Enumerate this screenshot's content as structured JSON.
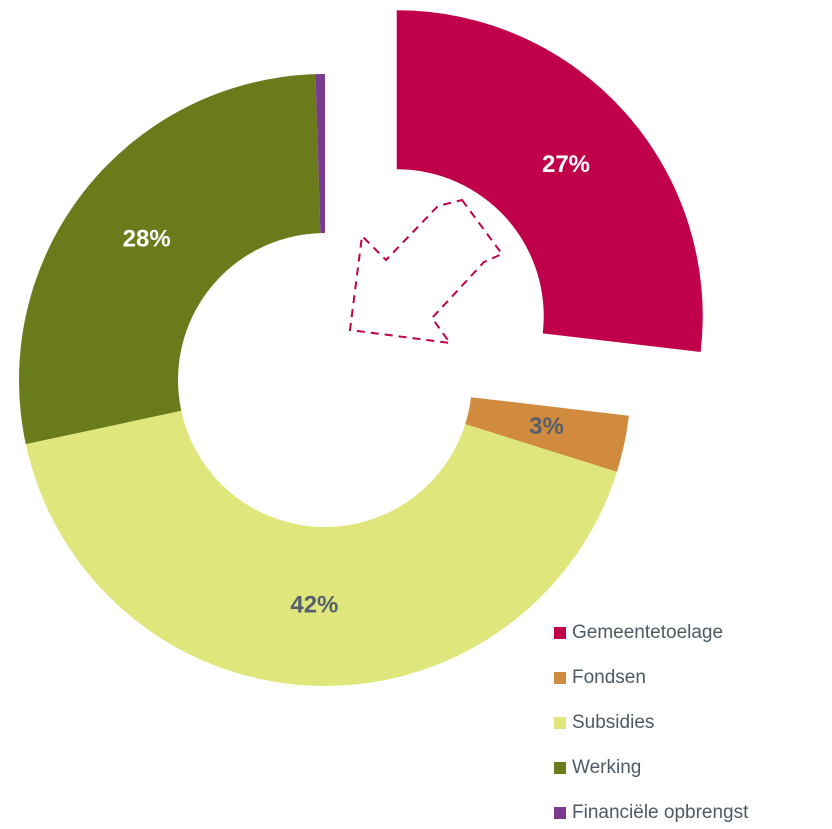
{
  "chart_data": {
    "type": "donut",
    "categories": [
      "Gemeentetoelage",
      "Fondsen",
      "Subsidies",
      "Werking",
      "Financiële opbrengst"
    ],
    "values": [
      27,
      3,
      42,
      28,
      0.5
    ],
    "value_labels": [
      "27%",
      "3%",
      "42%",
      "28%",
      null
    ],
    "colors": [
      "#c0004a",
      "#d08b3e",
      "#dfe77c",
      "#6a7b1b",
      "#7a3a8e"
    ],
    "label_colors": [
      "#ffffff",
      "#55606c",
      "#55606c",
      "#ffffff",
      "#ffffff"
    ],
    "exploded": [
      true,
      false,
      false,
      false,
      false
    ],
    "legend": "bottom-right"
  }
}
